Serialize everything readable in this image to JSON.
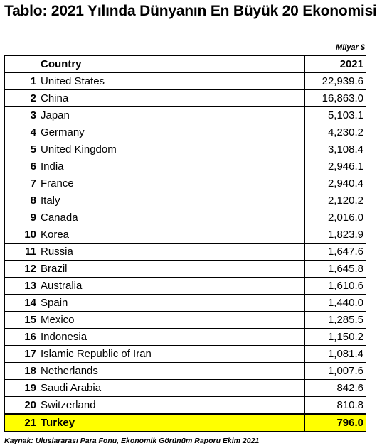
{
  "title": "Tablo: 2021 Yılında Dünyanın En Büyük 20 Ekonomisi",
  "unit": "Milyar $",
  "table": {
    "headers": {
      "country": "Country",
      "year": "2021"
    },
    "rows": [
      {
        "rank": "1",
        "country": "United States",
        "value": "22,939.6"
      },
      {
        "rank": "2",
        "country": "China",
        "value": "16,863.0"
      },
      {
        "rank": "3",
        "country": "Japan",
        "value": "5,103.1"
      },
      {
        "rank": "4",
        "country": "Germany",
        "value": "4,230.2"
      },
      {
        "rank": "5",
        "country": "United Kingdom",
        "value": "3,108.4"
      },
      {
        "rank": "6",
        "country": "India",
        "value": "2,946.1"
      },
      {
        "rank": "7",
        "country": "France",
        "value": "2,940.4"
      },
      {
        "rank": "8",
        "country": "Italy",
        "value": "2,120.2"
      },
      {
        "rank": "9",
        "country": "Canada",
        "value": "2,016.0"
      },
      {
        "rank": "10",
        "country": "Korea",
        "value": "1,823.9"
      },
      {
        "rank": "11",
        "country": "Russia",
        "value": "1,647.6"
      },
      {
        "rank": "12",
        "country": "Brazil",
        "value": "1,645.8"
      },
      {
        "rank": "13",
        "country": "Australia",
        "value": "1,610.6"
      },
      {
        "rank": "14",
        "country": "Spain",
        "value": "1,440.0"
      },
      {
        "rank": "15",
        "country": "Mexico",
        "value": "1,285.5"
      },
      {
        "rank": "16",
        "country": "Indonesia",
        "value": "1,150.2"
      },
      {
        "rank": "17",
        "country": "Islamic Republic of Iran",
        "value": "1,081.4"
      },
      {
        "rank": "18",
        "country": "Netherlands",
        "value": "1,007.6"
      },
      {
        "rank": "19",
        "country": "Saudi Arabia",
        "value": "842.6"
      },
      {
        "rank": "20",
        "country": "Switzerland",
        "value": "810.8"
      },
      {
        "rank": "21",
        "country": "Turkey",
        "value": "796.0"
      }
    ],
    "highlight_color": "#ffff00"
  },
  "source": "Kaynak: Uluslararası Para Fonu, Ekonomik Görünüm Raporu Ekim 2021"
}
